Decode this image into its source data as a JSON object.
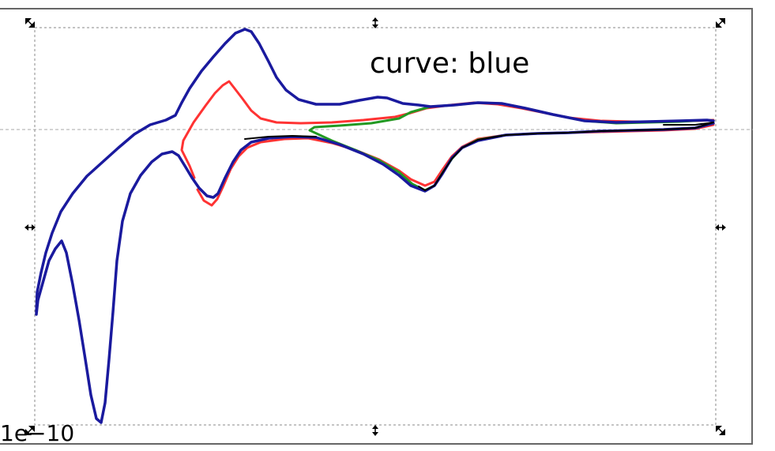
{
  "annotation": {
    "text": "curve: blue"
  },
  "axis": {
    "offset_text": "1e−10"
  },
  "colors": {
    "blue": "#1a1a9e",
    "red": "#ff3333",
    "green": "#229922",
    "black": "#000000",
    "selection": "#888888",
    "frame": "#666666"
  },
  "icons": {
    "handles": [
      "resize-nw-icon",
      "resize-n-icon",
      "resize-ne-icon",
      "resize-w-icon",
      "resize-e-icon",
      "resize-sw-icon",
      "resize-s-icon",
      "resize-se-icon"
    ]
  }
}
